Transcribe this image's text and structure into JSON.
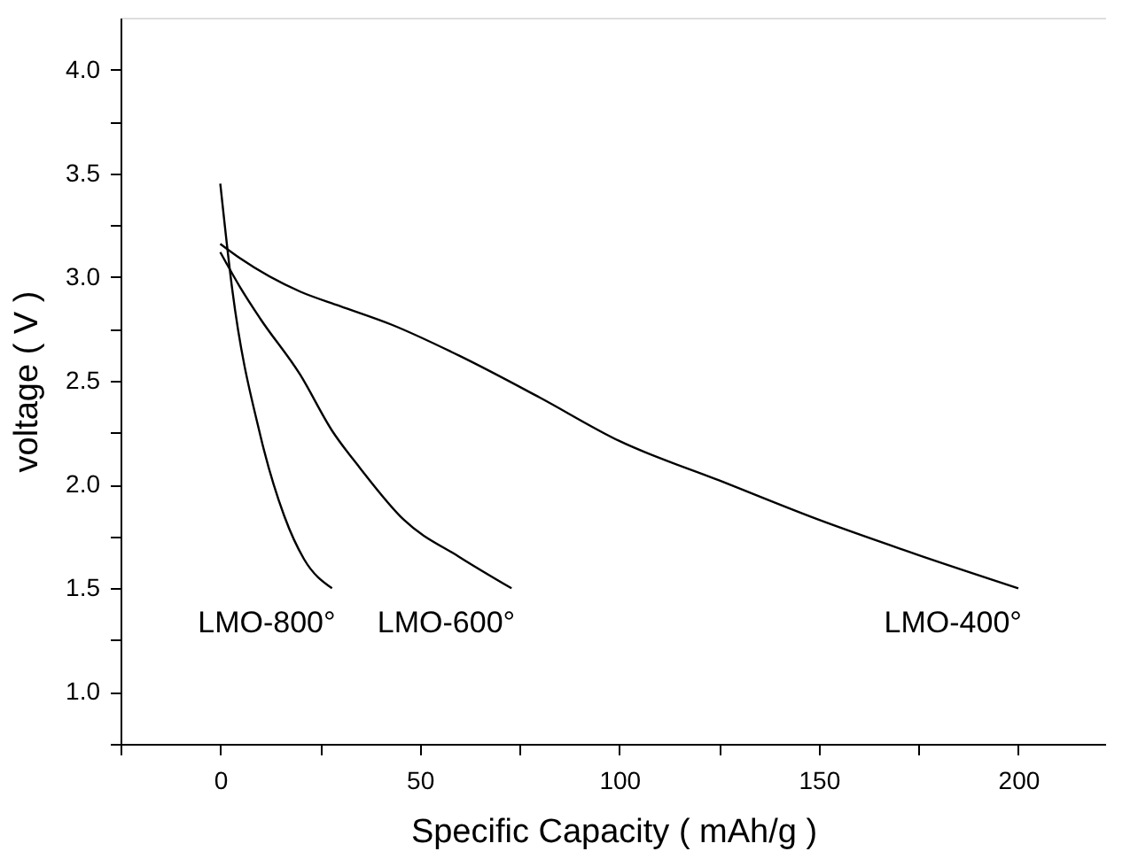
{
  "chart_data": {
    "type": "line",
    "xlabel": "Specific Capacity ( mAh/g )",
    "ylabel": "voltage ( V )",
    "xlim": [
      -25,
      222
    ],
    "ylim": [
      0.75,
      4.25
    ],
    "xticks": [
      {
        "value": -25,
        "label": null
      },
      0,
      {
        "value": 25,
        "label": null
      },
      50,
      {
        "value": 75,
        "label": null
      },
      100,
      {
        "value": 125,
        "label": null
      },
      150,
      {
        "value": 175,
        "label": null
      },
      200
    ],
    "yticks": [
      {
        "value": 0.75,
        "label": null
      },
      {
        "value": 1,
        "label": "1.0"
      },
      {
        "value": 1.25,
        "label": null
      },
      1.5,
      {
        "value": 1.75,
        "label": null
      },
      {
        "value": 2,
        "label": "2.0"
      },
      {
        "value": 2.25,
        "label": null
      },
      2.5,
      {
        "value": 2.75,
        "label": null
      },
      {
        "value": 3,
        "label": "3.0"
      },
      {
        "value": 3.25,
        "label": null
      },
      3.5,
      {
        "value": 3.75,
        "label": null
      },
      {
        "value": 4,
        "label": "4.0"
      }
    ],
    "grid": false,
    "marker": "none",
    "line_style": "solid",
    "series": [
      {
        "color": "#000000",
        "x": [
          0,
          3,
          10,
          16,
          21,
          28
        ],
        "values": [
          3.45,
          2.94,
          2.24,
          1.85,
          1.64,
          1.5
        ]
      },
      {
        "color": "#000000",
        "x": [
          0,
          5,
          10,
          20,
          28,
          35,
          46,
          60,
          73
        ],
        "values": [
          3.12,
          2.95,
          2.8,
          2.53,
          2.26,
          2.08,
          1.83,
          1.65,
          1.5
        ]
      },
      {
        "color": "#000000",
        "x": [
          0,
          5,
          20,
          30,
          43,
          60,
          80,
          100,
          125,
          150,
          175,
          200
        ],
        "values": [
          3.16,
          3.09,
          2.93,
          2.86,
          2.77,
          2.62,
          2.42,
          2.21,
          2.02,
          1.83,
          1.66,
          1.5
        ]
      }
    ],
    "annotations": [
      "LMO-800°",
      "LMO-600°",
      "LMO-400°"
    ]
  }
}
